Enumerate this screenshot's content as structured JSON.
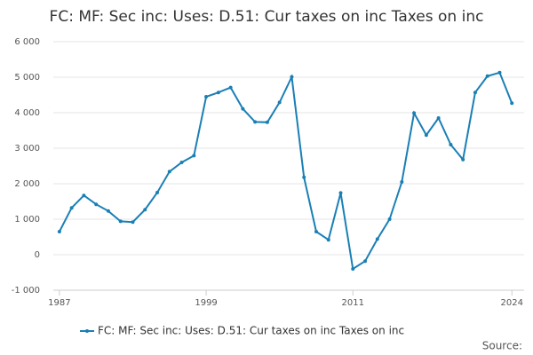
{
  "chart_data": {
    "type": "line",
    "title": "FC: MF: Sec inc: Uses: D.51: Cur taxes on inc Taxes on inc",
    "x": [
      1987,
      1988,
      1989,
      1990,
      1991,
      1992,
      1993,
      1994,
      1995,
      1996,
      1997,
      1998,
      1999,
      2000,
      2001,
      2002,
      2003,
      2004,
      2005,
      2006,
      2007,
      2008,
      2009,
      2010,
      2011,
      2012,
      2013,
      2014,
      2015,
      2016,
      2017,
      2018,
      2019,
      2020,
      2021,
      2022,
      2023,
      2024
    ],
    "series": [
      {
        "name": "FC: MF: Sec inc: Uses: D.51: Cur taxes on inc Taxes on inc",
        "color": "#1a7fb5",
        "values": [
          650,
          1320,
          1670,
          1420,
          1230,
          940,
          920,
          1270,
          1750,
          2340,
          2600,
          2790,
          4450,
          4570,
          4710,
          4110,
          3740,
          3730,
          4290,
          5010,
          2180,
          650,
          420,
          1740,
          -400,
          -180,
          440,
          1000,
          2050,
          3990,
          3370,
          3850,
          3100,
          2680,
          4570,
          5030,
          5130,
          4270
        ]
      }
    ],
    "xlim": [
      1986.5,
      2025
    ],
    "xticks": [
      1987,
      1999,
      2011,
      2024
    ],
    "ylim": [
      -1000,
      6000
    ],
    "yticks": [
      {
        "value": -1000,
        "label": "-1 000"
      },
      0,
      {
        "value": 1000,
        "label": "1 000"
      },
      {
        "value": 2000,
        "label": "2 000"
      },
      {
        "value": 3000,
        "label": "3 000"
      },
      {
        "value": 4000,
        "label": "4 000"
      },
      {
        "value": 5000,
        "label": "5 000"
      },
      {
        "value": 6000,
        "label": "6 000"
      }
    ],
    "grid": true,
    "source": "Source:"
  }
}
